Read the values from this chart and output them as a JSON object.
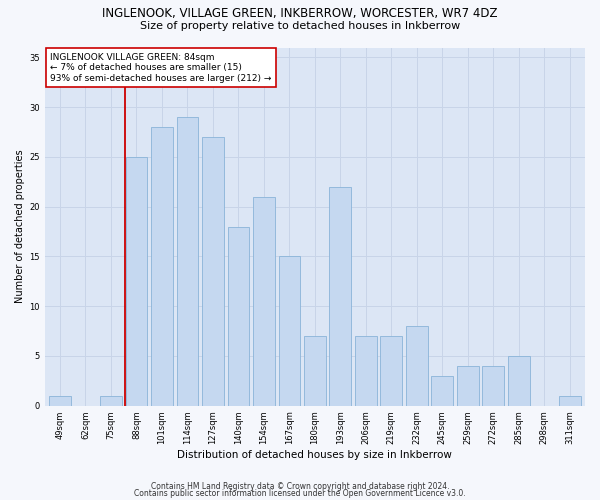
{
  "title1": "INGLENOOK, VILLAGE GREEN, INKBERROW, WORCESTER, WR7 4DZ",
  "title2": "Size of property relative to detached houses in Inkberrow",
  "xlabel": "Distribution of detached houses by size in Inkberrow",
  "ylabel": "Number of detached properties",
  "categories": [
    "49sqm",
    "62sqm",
    "75sqm",
    "88sqm",
    "101sqm",
    "114sqm",
    "127sqm",
    "140sqm",
    "154sqm",
    "167sqm",
    "180sqm",
    "193sqm",
    "206sqm",
    "219sqm",
    "232sqm",
    "245sqm",
    "259sqm",
    "272sqm",
    "285sqm",
    "298sqm",
    "311sqm"
  ],
  "values": [
    1,
    0,
    1,
    25,
    28,
    29,
    27,
    18,
    21,
    15,
    7,
    22,
    7,
    7,
    8,
    3,
    4,
    4,
    5,
    0,
    1
  ],
  "bar_color": "#c5d8f0",
  "bar_edge_color": "#8ab4d8",
  "vline_color": "#cc0000",
  "vline_x_index": 3,
  "annotation_text": "INGLENOOK VILLAGE GREEN: 84sqm\n← 7% of detached houses are smaller (15)\n93% of semi-detached houses are larger (212) →",
  "annotation_box_color": "#ffffff",
  "annotation_box_edge_color": "#cc0000",
  "ylim": [
    0,
    36
  ],
  "yticks": [
    0,
    5,
    10,
    15,
    20,
    25,
    30,
    35
  ],
  "grid_color": "#c8d4e8",
  "plot_bg_color": "#dce6f5",
  "fig_bg_color": "#f5f7fc",
  "footer1": "Contains HM Land Registry data © Crown copyright and database right 2024.",
  "footer2": "Contains public sector information licensed under the Open Government Licence v3.0.",
  "title1_fontsize": 8.5,
  "title2_fontsize": 8.0,
  "xlabel_fontsize": 7.5,
  "ylabel_fontsize": 7.0,
  "tick_fontsize": 6.0,
  "annotation_fontsize": 6.5,
  "footer_fontsize": 5.5
}
